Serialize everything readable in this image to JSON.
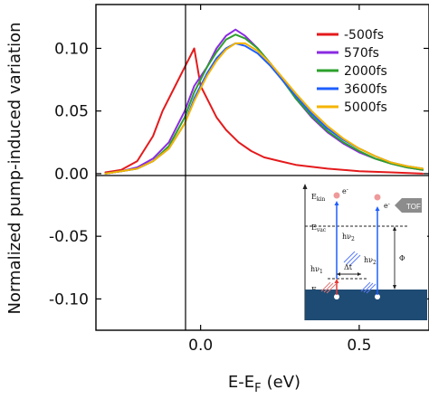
{
  "chart_data": {
    "type": "line",
    "xlabel": "E-E",
    "xlabel_sub": "F",
    "xlabel_unit": "(eV)",
    "ylabel": "Normalized pump-induced variation",
    "xlim": [
      -0.33,
      0.72
    ],
    "ylim": [
      -0.125,
      0.135
    ],
    "x_ticks": [
      {
        "value": 0.0,
        "label": "0.0"
      },
      {
        "value": 0.5,
        "label": "0.5"
      }
    ],
    "y_ticks": [
      {
        "value": 0.1,
        "label": "0.10"
      },
      {
        "value": 0.05,
        "label": "0.05"
      },
      {
        "value": 0.0,
        "label": "0.00"
      },
      {
        "value": -0.05,
        "label": "-0.05"
      },
      {
        "value": -0.1,
        "label": "-0.10"
      }
    ],
    "grid": false,
    "legend_position": "top-right",
    "series": [
      {
        "name": "-500fs",
        "color": "#e41a1c"
      },
      {
        "name": "570fs",
        "color": "#8a2be2"
      },
      {
        "name": "2000fs",
        "color": "#2ca02c"
      },
      {
        "name": "3600fs",
        "color": "#1f5fff"
      },
      {
        "name": "5000fs",
        "color": "#f4b400"
      }
    ],
    "series_points": {
      "-500fs": [
        [
          -0.3,
          0.001
        ],
        [
          -0.25,
          0.003
        ],
        [
          -0.2,
          0.01
        ],
        [
          -0.15,
          0.03
        ],
        [
          -0.12,
          0.05
        ],
        [
          -0.08,
          0.07
        ],
        [
          -0.05,
          0.085
        ],
        [
          -0.02,
          0.1
        ],
        [
          0.0,
          0.07
        ],
        [
          0.02,
          0.06
        ],
        [
          0.05,
          0.045
        ],
        [
          0.08,
          0.035
        ],
        [
          0.12,
          0.025
        ],
        [
          0.16,
          0.018
        ],
        [
          0.2,
          0.013
        ],
        [
          0.25,
          0.01
        ],
        [
          0.3,
          0.007
        ],
        [
          0.4,
          0.004
        ],
        [
          0.5,
          0.002
        ],
        [
          0.6,
          0.001
        ],
        [
          0.7,
          0.0
        ]
      ],
      "570fs": [
        [
          -0.3,
          0.0
        ],
        [
          -0.25,
          0.002
        ],
        [
          -0.2,
          0.005
        ],
        [
          -0.15,
          0.012
        ],
        [
          -0.1,
          0.025
        ],
        [
          -0.05,
          0.05
        ],
        [
          -0.02,
          0.07
        ],
        [
          0.02,
          0.085
        ],
        [
          0.05,
          0.1
        ],
        [
          0.08,
          0.11
        ],
        [
          0.11,
          0.115
        ],
        [
          0.14,
          0.11
        ],
        [
          0.18,
          0.1
        ],
        [
          0.22,
          0.088
        ],
        [
          0.26,
          0.075
        ],
        [
          0.3,
          0.06
        ],
        [
          0.35,
          0.045
        ],
        [
          0.4,
          0.033
        ],
        [
          0.45,
          0.024
        ],
        [
          0.5,
          0.017
        ],
        [
          0.55,
          0.012
        ],
        [
          0.6,
          0.008
        ],
        [
          0.65,
          0.005
        ],
        [
          0.7,
          0.003
        ]
      ],
      "2000fs": [
        [
          -0.3,
          0.0
        ],
        [
          -0.25,
          0.002
        ],
        [
          -0.2,
          0.004
        ],
        [
          -0.15,
          0.01
        ],
        [
          -0.1,
          0.022
        ],
        [
          -0.05,
          0.045
        ],
        [
          -0.02,
          0.065
        ],
        [
          0.02,
          0.085
        ],
        [
          0.05,
          0.097
        ],
        [
          0.08,
          0.107
        ],
        [
          0.11,
          0.111
        ],
        [
          0.14,
          0.108
        ],
        [
          0.18,
          0.1
        ],
        [
          0.22,
          0.088
        ],
        [
          0.26,
          0.074
        ],
        [
          0.3,
          0.06
        ],
        [
          0.35,
          0.046
        ],
        [
          0.4,
          0.034
        ],
        [
          0.45,
          0.025
        ],
        [
          0.5,
          0.018
        ],
        [
          0.55,
          0.012
        ],
        [
          0.6,
          0.008
        ],
        [
          0.65,
          0.005
        ],
        [
          0.7,
          0.003
        ]
      ],
      "3600fs": [
        [
          -0.3,
          0.0
        ],
        [
          -0.25,
          0.002
        ],
        [
          -0.2,
          0.004
        ],
        [
          -0.15,
          0.01
        ],
        [
          -0.1,
          0.02
        ],
        [
          -0.05,
          0.04
        ],
        [
          -0.02,
          0.06
        ],
        [
          0.02,
          0.08
        ],
        [
          0.05,
          0.092
        ],
        [
          0.08,
          0.1
        ],
        [
          0.11,
          0.104
        ],
        [
          0.14,
          0.102
        ],
        [
          0.18,
          0.096
        ],
        [
          0.22,
          0.086
        ],
        [
          0.26,
          0.074
        ],
        [
          0.3,
          0.062
        ],
        [
          0.35,
          0.048
        ],
        [
          0.4,
          0.036
        ],
        [
          0.45,
          0.027
        ],
        [
          0.5,
          0.02
        ],
        [
          0.55,
          0.014
        ],
        [
          0.6,
          0.009
        ],
        [
          0.65,
          0.006
        ],
        [
          0.7,
          0.004
        ]
      ],
      "5000fs": [
        [
          -0.3,
          0.0
        ],
        [
          -0.25,
          0.002
        ],
        [
          -0.2,
          0.004
        ],
        [
          -0.15,
          0.01
        ],
        [
          -0.1,
          0.02
        ],
        [
          -0.05,
          0.04
        ],
        [
          -0.02,
          0.058
        ],
        [
          0.02,
          0.078
        ],
        [
          0.05,
          0.09
        ],
        [
          0.08,
          0.099
        ],
        [
          0.11,
          0.104
        ],
        [
          0.14,
          0.104
        ],
        [
          0.18,
          0.098
        ],
        [
          0.22,
          0.088
        ],
        [
          0.26,
          0.076
        ],
        [
          0.3,
          0.064
        ],
        [
          0.35,
          0.05
        ],
        [
          0.4,
          0.038
        ],
        [
          0.45,
          0.028
        ],
        [
          0.5,
          0.02
        ],
        [
          0.55,
          0.014
        ],
        [
          0.6,
          0.009
        ],
        [
          0.65,
          0.006
        ],
        [
          0.7,
          0.004
        ]
      ]
    },
    "inset": {
      "labels": {
        "ekin": "E",
        "ekin_sub": "kin",
        "evac": "E",
        "evac_sub": "vac",
        "ef": "E",
        "ef_sub": "F",
        "hv1": "hν",
        "hv1_sub": "1",
        "hv2a": "hν",
        "hv2a_sub": "2",
        "hv2b": "hν",
        "hv2b_sub": "2",
        "dt": "Δt",
        "phi": "Φ",
        "electron": "e",
        "electron_sup": "-",
        "tof_e": "e",
        "tof_sup": "-",
        "tof": "TOF"
      }
    }
  }
}
